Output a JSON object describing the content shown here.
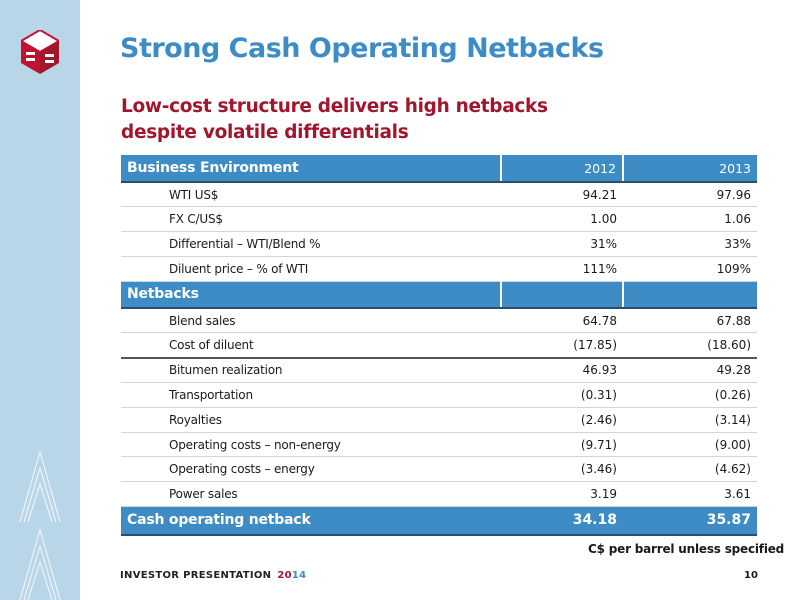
{
  "title": "Strong Cash Operating Netbacks",
  "subtitle": {
    "line1": "Low-cost structure delivers high netbacks",
    "line2": "despite volatile differentials"
  },
  "table": {
    "business": {
      "header": "Business Environment",
      "col1": "2012",
      "col2": "2013",
      "rows": [
        {
          "label": "WTI US$",
          "v2012": "94.21",
          "v2013": "97.96"
        },
        {
          "label": "FX C/US$",
          "v2012": "1.00",
          "v2013": "1.06"
        },
        {
          "label": "Differential – WTI/Blend %",
          "v2012": "31%",
          "v2013": "33%"
        },
        {
          "label": "Diluent price – % of WTI",
          "v2012": "111%",
          "v2013": "109%"
        }
      ]
    },
    "netbacks": {
      "header": "Netbacks",
      "rows": [
        {
          "label": "Blend sales",
          "v2012": "64.78",
          "v2013": "67.88"
        },
        {
          "label": "Cost of diluent",
          "v2012": "(17.85)",
          "v2013": "(18.60)"
        },
        {
          "label": "Bitumen realization",
          "v2012": "46.93",
          "v2013": "49.28"
        },
        {
          "label": "Transportation",
          "v2012": "(0.31)",
          "v2013": "(0.26)"
        },
        {
          "label": "Royalties",
          "v2012": "(2.46)",
          "v2013": "(3.14)"
        },
        {
          "label": "Operating costs – non-energy",
          "v2012": "(9.71)",
          "v2013": "(9.00)"
        },
        {
          "label": "Operating costs – energy",
          "v2012": "(3.46)",
          "v2013": "(4.62)"
        },
        {
          "label": "Power sales",
          "v2012": "3.19",
          "v2013": "3.61"
        }
      ]
    },
    "total": {
      "label": "Cash operating netback",
      "v2012": "34.18",
      "v2013": "35.87"
    }
  },
  "note": "C$ per barrel unless specified",
  "footer": {
    "text": "INVESTOR PRESENTATION",
    "year_part1": "20",
    "year_part2": "14"
  },
  "page_number": "10",
  "colors": {
    "accent_blue": "#3d8cc6",
    "accent_red": "#a1162c",
    "sidebar": "#b9d5e8"
  }
}
